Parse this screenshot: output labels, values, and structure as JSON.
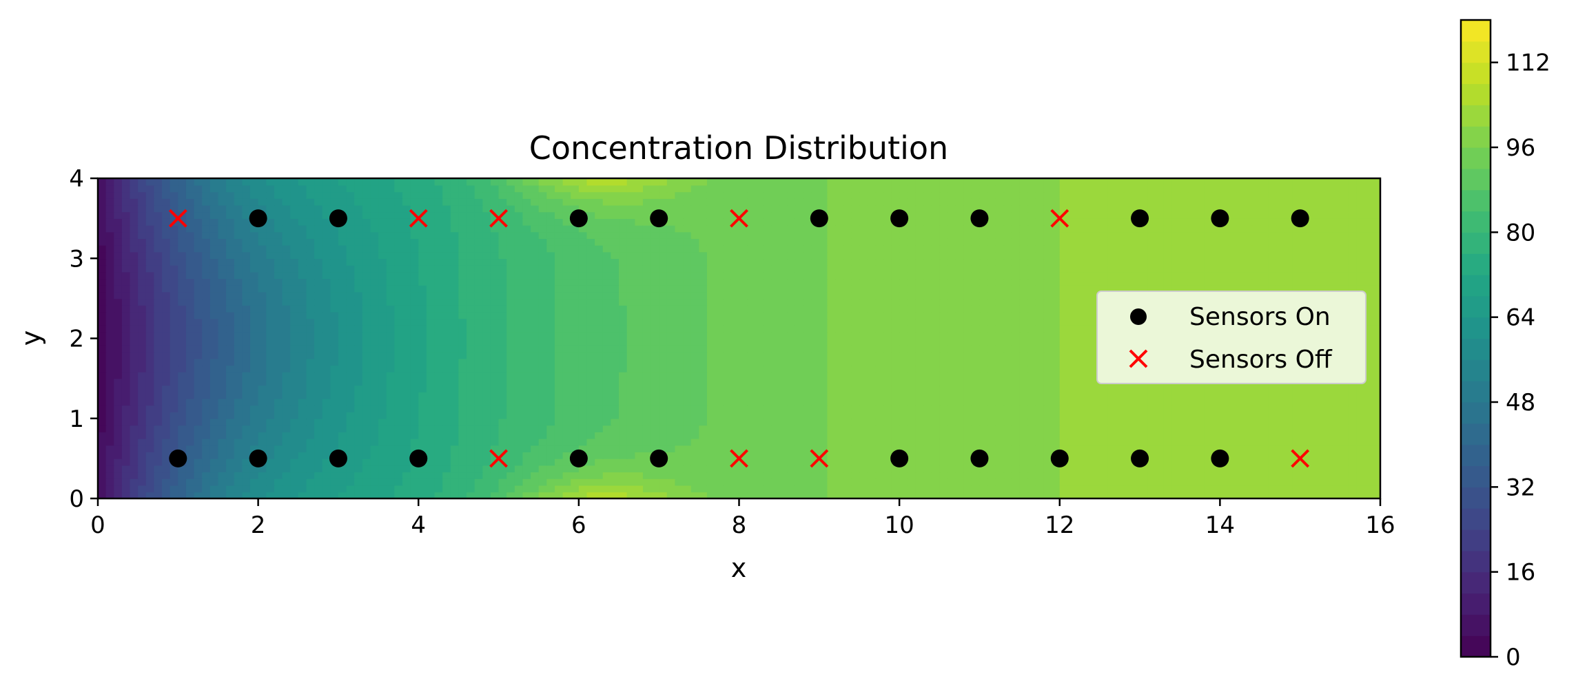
{
  "chart_data": {
    "type": "heatmap",
    "title": "Concentration Distribution",
    "xlabel": "x",
    "ylabel": "y",
    "xlim": [
      0,
      16
    ],
    "ylim": [
      0,
      4
    ],
    "x_ticks": [
      0,
      2,
      4,
      6,
      8,
      10,
      12,
      14,
      16
    ],
    "y_ticks": [
      0,
      1,
      2,
      3,
      4
    ],
    "colormap": "viridis",
    "colorbar": {
      "min": 0,
      "max": 120,
      "ticks": [
        0,
        16,
        32,
        48,
        64,
        80,
        96,
        112
      ]
    },
    "legend_position": "center-right",
    "series": [
      {
        "name": "Sensors On",
        "marker": "circle",
        "color": "#000000",
        "points": [
          [
            2,
            3.5
          ],
          [
            3,
            3.5
          ],
          [
            6,
            3.5
          ],
          [
            7,
            3.5
          ],
          [
            9,
            3.5
          ],
          [
            10,
            3.5
          ],
          [
            11,
            3.5
          ],
          [
            13,
            3.5
          ],
          [
            14,
            3.5
          ],
          [
            15,
            3.5
          ],
          [
            1,
            0.5
          ],
          [
            2,
            0.5
          ],
          [
            3,
            0.5
          ],
          [
            4,
            0.5
          ],
          [
            6,
            0.5
          ],
          [
            7,
            0.5
          ],
          [
            10,
            0.5
          ],
          [
            11,
            0.5
          ],
          [
            12,
            0.5
          ],
          [
            13,
            0.5
          ],
          [
            14,
            0.5
          ]
        ]
      },
      {
        "name": "Sensors Off",
        "marker": "x",
        "color": "#ff0000",
        "points": [
          [
            1,
            3.5
          ],
          [
            4,
            3.5
          ],
          [
            5,
            3.5
          ],
          [
            8,
            3.5
          ],
          [
            12,
            3.5
          ],
          [
            5,
            0.5
          ],
          [
            8,
            0.5
          ],
          [
            9,
            0.5
          ],
          [
            15,
            0.5
          ]
        ]
      }
    ]
  }
}
